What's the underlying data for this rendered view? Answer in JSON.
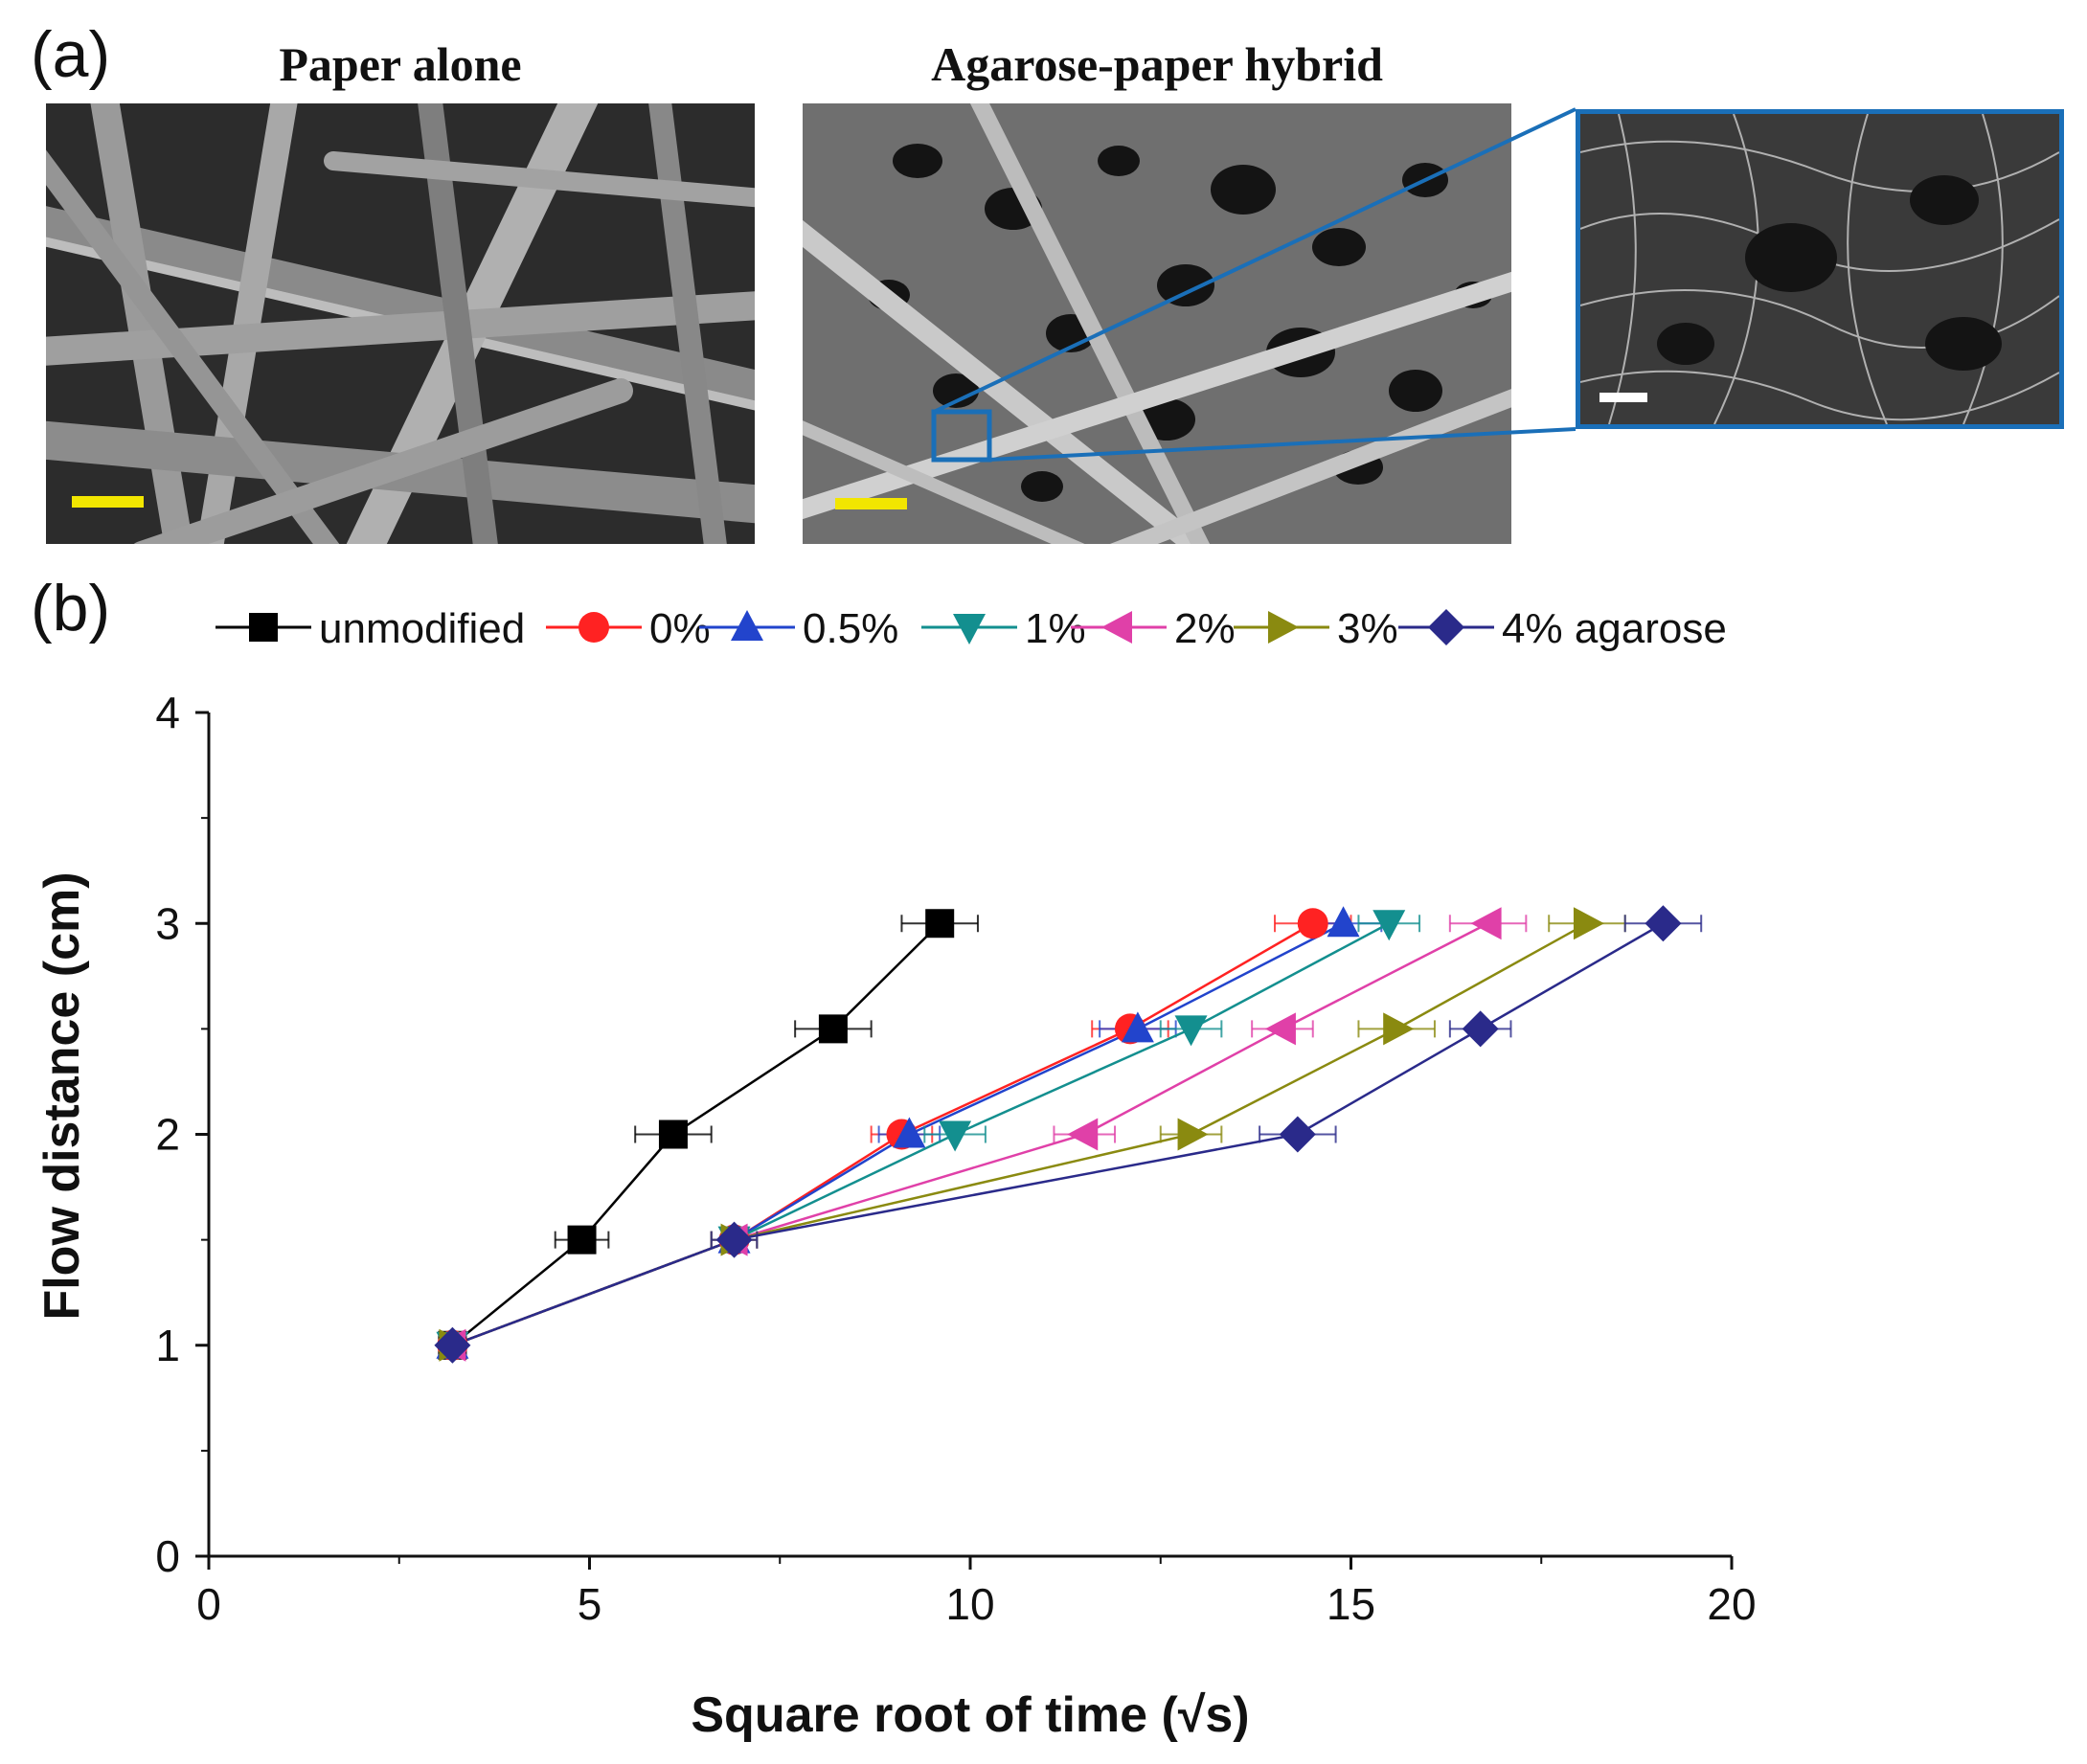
{
  "figure": {
    "panel_a_label": "(a)",
    "panel_b_label": "(b)",
    "image_titles": [
      "Paper alone",
      "Agarose-paper hybrid"
    ],
    "scalebar_colors": {
      "left": "#f2e600",
      "middle": "#f2e600",
      "inset": "#ffffff"
    },
    "inset_frame_color": "#1a6fb8"
  },
  "chart_data": {
    "type": "line",
    "xlabel": "Square root of time (√s)",
    "ylabel": "Flow distance (cm)",
    "xlim": [
      0,
      20
    ],
    "ylim": [
      0,
      4
    ],
    "xticks": [
      "0",
      "5",
      "10",
      "15",
      "20"
    ],
    "yticks": [
      "0",
      "1",
      "2",
      "3",
      "4"
    ],
    "legend_position": "top",
    "grid": false,
    "series": [
      {
        "name": "unmodified",
        "color": "#000000",
        "marker": "square",
        "x": [
          3.2,
          4.9,
          6.1,
          8.2,
          9.6
        ],
        "y": [
          1,
          1.5,
          2,
          2.5,
          3
        ],
        "xerr": [
          0.15,
          0.35,
          0.5,
          0.5,
          0.5
        ]
      },
      {
        "name": "0%",
        "color": "#ff2222",
        "marker": "circle",
        "x": [
          3.2,
          6.9,
          9.1,
          12.1,
          14.5
        ],
        "y": [
          1,
          1.5,
          2,
          2.5,
          3
        ],
        "xerr": [
          0.15,
          0.3,
          0.4,
          0.5,
          0.5
        ]
      },
      {
        "name": "0.5%",
        "color": "#2244cc",
        "marker": "triangle-up",
        "x": [
          3.2,
          6.9,
          9.2,
          12.2,
          14.9
        ],
        "y": [
          1,
          1.5,
          2,
          2.5,
          3
        ],
        "xerr": [
          0.15,
          0.3,
          0.4,
          0.5,
          0.5
        ]
      },
      {
        "name": "1%",
        "color": "#138f8f",
        "marker": "triangle-down",
        "x": [
          3.2,
          6.9,
          9.8,
          12.9,
          15.5
        ],
        "y": [
          1,
          1.5,
          2,
          2.5,
          3
        ],
        "xerr": [
          0.15,
          0.3,
          0.4,
          0.4,
          0.4
        ]
      },
      {
        "name": "2%",
        "color": "#e040a8",
        "marker": "triangle-left",
        "x": [
          3.2,
          6.9,
          11.5,
          14.1,
          16.8
        ],
        "y": [
          1,
          1.5,
          2,
          2.5,
          3
        ],
        "xerr": [
          0.15,
          0.3,
          0.4,
          0.4,
          0.5
        ]
      },
      {
        "name": "3%",
        "color": "#8a8a10",
        "marker": "triangle-right",
        "x": [
          3.2,
          6.9,
          12.9,
          15.6,
          18.1
        ],
        "y": [
          1,
          1.5,
          2,
          2.5,
          3
        ],
        "xerr": [
          0.15,
          0.3,
          0.4,
          0.5,
          0.5
        ]
      },
      {
        "name": "4% agarose",
        "color": "#2a2a8a",
        "marker": "diamond",
        "x": [
          3.2,
          6.9,
          14.3,
          16.7,
          19.1
        ],
        "y": [
          1,
          1.5,
          2,
          2.5,
          3
        ],
        "xerr": [
          0.15,
          0.3,
          0.5,
          0.4,
          0.5
        ]
      }
    ]
  }
}
